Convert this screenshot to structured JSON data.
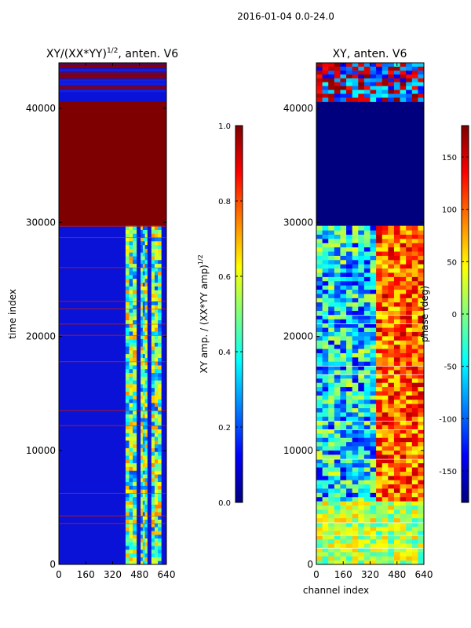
{
  "figure": {
    "suptitle": "2016-01-04 0.0-24.0"
  },
  "chart_data": [
    {
      "type": "heatmap",
      "title": "XY/(XX*YY)",
      "title_sup": "1/2",
      "title_suffix": ", anten. V6",
      "xlabel": "",
      "ylabel": "time index",
      "xlim": [
        0,
        640
      ],
      "ylim": [
        0,
        44000
      ],
      "xticks": [
        "0",
        "160",
        "320",
        "480",
        "640"
      ],
      "yticks": [
        "0",
        "10000",
        "20000",
        "30000",
        "40000"
      ],
      "colorbar": {
        "label": "XY amp. / (XX*YY amp)",
        "label_sup": "1/2",
        "range": [
          0.0,
          1.0
        ],
        "ticks": [
          "0.0",
          "0.2",
          "0.4",
          "0.6",
          "0.8",
          "1.0"
        ]
      }
    },
    {
      "type": "heatmap",
      "title": "XY, anten. V6",
      "xlabel": "channel index",
      "ylabel": "",
      "xlim": [
        0,
        640
      ],
      "ylim": [
        0,
        44000
      ],
      "xticks": [
        "0",
        "160",
        "320",
        "480",
        "640"
      ],
      "yticks": [
        "0",
        "10000",
        "20000",
        "30000",
        "40000"
      ],
      "colorbar": {
        "label": "phase (deg)",
        "range": [
          -180,
          180
        ],
        "ticks": [
          "-150",
          "-100",
          "-50",
          "0",
          "50",
          "100",
          "150"
        ]
      }
    }
  ],
  "colors": {
    "jet_low": "#00007f",
    "jet_high": "#7f0000",
    "frame": "#000000"
  }
}
